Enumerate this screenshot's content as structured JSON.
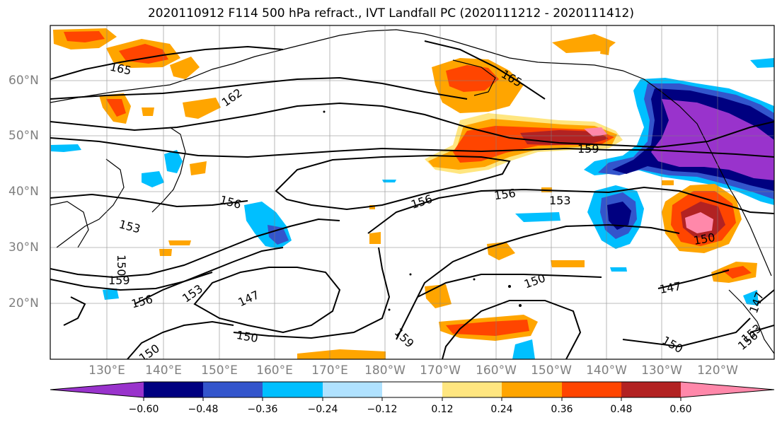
{
  "title": "2020110912 F114 500 hPa refract., IVT Landfall PC (2020111212 - 2020111412)",
  "lat_labels": [
    "60°N",
    "50°N",
    "40°N",
    "30°N",
    "20°N"
  ],
  "lon_labels": [
    "130°E",
    "140°E",
    "150°E",
    "160°E",
    "170°E",
    "180°W",
    "170°W",
    "160°W",
    "150°W",
    "140°W",
    "130°W",
    "120°W"
  ],
  "colorbar": {
    "ticks": [
      "−0.60",
      "−0.48",
      "−0.36",
      "−0.24",
      "−0.12",
      "0.12",
      "0.24",
      "0.36",
      "0.48",
      "0.60"
    ],
    "colors": [
      "#9933cc",
      "#000080",
      "#3355cc",
      "#00bfff",
      "#b0e2ff",
      "#ffffff",
      "#ffe680",
      "#ffa500",
      "#ff4500",
      "#b22222",
      "#ff88aa"
    ]
  },
  "contour_labels": [
    "165",
    "162",
    "165",
    "159",
    "156",
    "156",
    "153",
    "156",
    "156",
    "153",
    "153",
    "159",
    "150",
    "150",
    "156",
    "153",
    "147",
    "150",
    "159",
    "150",
    "147",
    "150",
    "147",
    "150",
    "156",
    "153",
    "14"
  ]
}
